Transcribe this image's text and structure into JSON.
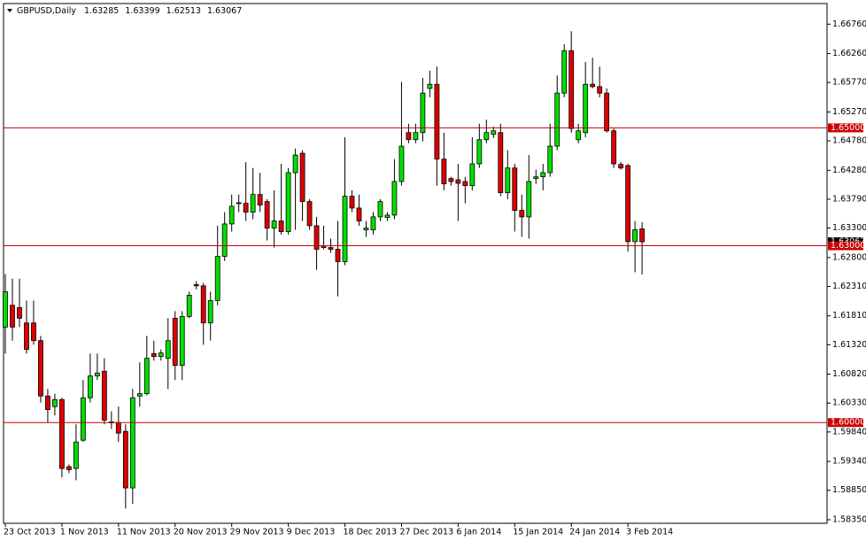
{
  "chart_data": {
    "type": "candlestick",
    "title": "GBPUSD,Daily",
    "categories": [
      "23 Oct 2013",
      null,
      null,
      null,
      null,
      null,
      null,
      null,
      "1 Nov 2013",
      null,
      null,
      null,
      null,
      null,
      null,
      null,
      "11 Nov 2013",
      null,
      null,
      null,
      null,
      null,
      null,
      null,
      "20 Nov 2013",
      null,
      null,
      null,
      null,
      null,
      null,
      null,
      "29 Nov 2013",
      null,
      null,
      null,
      null,
      null,
      null,
      null,
      "9 Dec 2013",
      null,
      null,
      null,
      null,
      null,
      null,
      null,
      "18 Dec 2013",
      null,
      null,
      null,
      null,
      null,
      null,
      null,
      "27 Dec 2013",
      null,
      null,
      null,
      null,
      null,
      null,
      null,
      "6 Jan 2014",
      null,
      null,
      null,
      null,
      null,
      null,
      null,
      "15 Jan 2014",
      null,
      null,
      null,
      null,
      null,
      null,
      null,
      "24 Jan 2014",
      null,
      null,
      null,
      null,
      null,
      null,
      null,
      "3 Feb 2014",
      null,
      null
    ],
    "open": [
      1.6162,
      1.6199,
      1.6195,
      1.6169,
      1.6169,
      1.6139,
      1.6045,
      1.6027,
      1.6039,
      1.5925,
      1.5922,
      1.597,
      1.6042,
      1.6079,
      1.6087,
      1.6001,
      1.6,
      1.5985,
      1.5889,
      1.6045,
      1.6049,
      1.6117,
      1.6112,
      1.6109,
      1.6177,
      1.6097,
      1.618,
      1.6234,
      1.6232,
      1.6169,
      1.6207,
      1.6282,
      1.6337,
      1.6373,
      1.6372,
      1.6357,
      1.6387,
      1.6375,
      1.633,
      1.6342,
      1.6324,
      1.6424,
      1.6457,
      1.6375,
      1.6334,
      1.63,
      1.6297,
      1.6294,
      1.6273,
      1.6384,
      1.6364,
      1.6327,
      1.6327,
      1.6349,
      1.6348,
      1.6352,
      1.6409,
      1.6492,
      1.648,
      1.6492,
      1.6567,
      1.6574,
      1.6447,
      1.6414,
      1.6412,
      1.6409,
      1.6402,
      1.6439,
      1.648,
      1.6489,
      1.6492,
      1.639,
      1.6432,
      1.636,
      1.6349,
      1.6414,
      1.6417,
      1.6424,
      1.6469,
      1.6559,
      1.6631,
      1.648,
      1.6492,
      1.6574,
      1.657,
      1.6559,
      1.6495,
      1.6438,
      1.6436,
      1.6307,
      1.63285
    ],
    "high": [
      1.6252,
      1.6244,
      1.6244,
      1.6207,
      1.6207,
      1.6147,
      1.6057,
      1.6049,
      1.6042,
      1.5929,
      1.5997,
      1.6072,
      1.6117,
      1.6117,
      1.6109,
      1.6019,
      1.6027,
      1.5997,
      1.6057,
      1.6102,
      1.6147,
      1.6139,
      1.6124,
      1.6177,
      1.6189,
      1.6189,
      1.6222,
      1.624,
      1.6237,
      1.6222,
      1.6334,
      1.6357,
      1.6387,
      1.6387,
      1.6442,
      1.6432,
      1.6424,
      1.6379,
      1.6394,
      1.6439,
      1.6432,
      1.6465,
      1.6462,
      1.6379,
      1.6349,
      1.6334,
      1.6312,
      1.6342,
      1.6484,
      1.6394,
      1.6387,
      1.6342,
      1.6357,
      1.6379,
      1.6357,
      1.6447,
      1.6578,
      1.6507,
      1.6507,
      1.6585,
      1.6597,
      1.6604,
      1.6492,
      1.6417,
      1.6439,
      1.6417,
      1.6484,
      1.6507,
      1.6514,
      1.6502,
      1.6507,
      1.6462,
      1.6439,
      1.6387,
      1.6454,
      1.6429,
      1.6439,
      1.6507,
      1.6589,
      1.6642,
      1.6664,
      1.6507,
      1.6612,
      1.6619,
      1.6604,
      1.6567,
      1.6499,
      1.6442,
      1.6439,
      1.6342,
      1.63399
    ],
    "low": [
      1.6117,
      1.6139,
      1.6162,
      1.6117,
      1.6132,
      1.6034,
      1.6,
      1.6012,
      1.5907,
      1.5914,
      1.5902,
      1.5967,
      1.6034,
      1.6072,
      1.5997,
      1.5989,
      1.5967,
      1.5854,
      1.5862,
      1.6027,
      1.6046,
      1.6105,
      1.6105,
      1.6057,
      1.6072,
      1.6072,
      1.6177,
      1.6226,
      1.6132,
      1.6139,
      1.6199,
      1.6274,
      1.6324,
      1.6357,
      1.6342,
      1.6345,
      1.6357,
      1.6309,
      1.6297,
      1.6319,
      1.6319,
      1.6327,
      1.6342,
      1.6327,
      1.6259,
      1.6294,
      1.6288,
      1.6214,
      1.6267,
      1.6357,
      1.6334,
      1.6315,
      1.6319,
      1.6342,
      1.6342,
      1.6345,
      1.6402,
      1.6474,
      1.6474,
      1.6477,
      1.6552,
      1.6402,
      1.6394,
      1.6402,
      1.6342,
      1.6372,
      1.6394,
      1.6432,
      1.6474,
      1.6483,
      1.6384,
      1.6379,
      1.6324,
      1.6315,
      1.6312,
      1.6405,
      1.6394,
      1.6417,
      1.6462,
      1.6552,
      1.6492,
      1.6474,
      1.6484,
      1.6567,
      1.6552,
      1.6492,
      1.6432,
      1.6429,
      1.629,
      1.6255,
      1.62513
    ],
    "close": [
      1.6222,
      1.6162,
      1.6177,
      1.6124,
      1.6139,
      1.6045,
      1.6022,
      1.6039,
      1.5922,
      1.592,
      1.5967,
      1.6042,
      1.6079,
      1.6084,
      1.6004,
      1.6,
      1.5982,
      1.5889,
      1.6042,
      1.6049,
      1.6109,
      1.6112,
      1.6118,
      1.6139,
      1.6097,
      1.618,
      1.6216,
      1.6232,
      1.6169,
      1.6207,
      1.6282,
      1.6337,
      1.6367,
      1.6372,
      1.6357,
      1.6387,
      1.6369,
      1.633,
      1.6342,
      1.6324,
      1.6424,
      1.6454,
      1.6375,
      1.6334,
      1.6294,
      1.6297,
      1.6294,
      1.6273,
      1.6384,
      1.6364,
      1.6342,
      1.633,
      1.6349,
      1.6375,
      1.6352,
      1.6409,
      1.6469,
      1.648,
      1.6492,
      1.6559,
      1.6574,
      1.6447,
      1.6405,
      1.6409,
      1.6406,
      1.6402,
      1.6439,
      1.648,
      1.6492,
      1.6495,
      1.639,
      1.6432,
      1.636,
      1.6349,
      1.6409,
      1.6417,
      1.6424,
      1.6469,
      1.6559,
      1.6631,
      1.6499,
      1.6495,
      1.6574,
      1.657,
      1.6559,
      1.6495,
      1.6439,
      1.6432,
      1.6307,
      1.6327,
      1.63067
    ],
    "up_color": "#00e000",
    "down_color": "#e00000",
    "ylim": [
      1.5829,
      1.6711
    ],
    "yticks": [
      {
        "value": 1.6676,
        "label": "1.66760"
      },
      {
        "value": 1.6626,
        "label": "1.66260"
      },
      {
        "value": 1.6577,
        "label": "1.65770"
      },
      {
        "value": 1.6527,
        "label": "1.65270"
      },
      {
        "value": 1.6478,
        "label": "1.64780"
      },
      {
        "value": 1.6428,
        "label": "1.64280"
      },
      {
        "value": 1.6379,
        "label": "1.63790"
      },
      {
        "value": 1.633,
        "label": "1.63300"
      },
      {
        "value": 1.628,
        "label": "1.62800"
      },
      {
        "value": 1.6231,
        "label": "1.62310"
      },
      {
        "value": 1.6181,
        "label": "1.61810"
      },
      {
        "value": 1.6132,
        "label": "1.61320"
      },
      {
        "value": 1.6082,
        "label": "1.60820"
      },
      {
        "value": 1.6033,
        "label": "1.60330"
      },
      {
        "value": 1.5984,
        "label": "1.59840"
      },
      {
        "value": 1.5934,
        "label": "1.59340"
      },
      {
        "value": 1.5885,
        "label": "1.58850"
      },
      {
        "value": 1.5835,
        "label": "1.58350"
      }
    ],
    "hlines": [
      {
        "value": 1.65,
        "label": "1.65000"
      },
      {
        "value": 1.63,
        "label": "1.63000"
      },
      {
        "value": 1.6,
        "label": "1.60000"
      }
    ],
    "hline_color": "#cc0000"
  }
}
